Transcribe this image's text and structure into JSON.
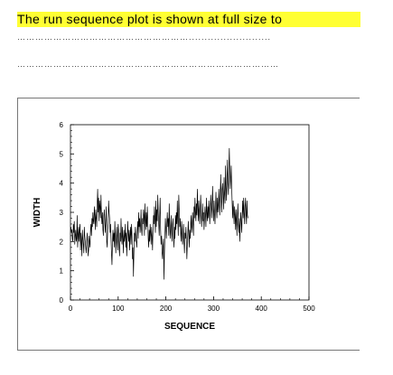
{
  "document": {
    "heading": "The run sequence plot is shown at full size to",
    "dotted_line_1": "…………………………………………………..........................",
    "dotted_line_2": "……………………………………………………………………………"
  },
  "chart_data": {
    "type": "line",
    "title": "",
    "xlabel": "SEQUENCE",
    "ylabel": "WIDTH",
    "xlim": [
      0,
      500
    ],
    "ylim": [
      0,
      6
    ],
    "xticks": [
      0,
      100,
      200,
      300,
      400,
      500
    ],
    "yticks": [
      0,
      1,
      2,
      3,
      4,
      5,
      6
    ],
    "grid": false,
    "series": [
      {
        "values": [
          2.5,
          2.3,
          2.4,
          2.1,
          2.0,
          2.6,
          2.3,
          2.7,
          1.9,
          2.2,
          2.4,
          2.0,
          2.1,
          2.9,
          1.8,
          2.2,
          2.5,
          2.0,
          2.4,
          2.6,
          1.7,
          2.3,
          2.0,
          1.5,
          2.4,
          2.1,
          1.9,
          1.6,
          2.5,
          2.2,
          2.0,
          1.8,
          1.6,
          1.9,
          2.3,
          2.0,
          1.5,
          1.7,
          2.2,
          2.0,
          1.8,
          2.4,
          2.6,
          2.2,
          2.8,
          2.5,
          3.0,
          2.7,
          2.6,
          3.2,
          2.9,
          2.4,
          3.1,
          2.8,
          2.5,
          3.3,
          3.8,
          3.0,
          3.5,
          2.7,
          3.4,
          3.2,
          2.8,
          3.6,
          2.9,
          2.6,
          3.0,
          2.4,
          2.2,
          2.9,
          3.1,
          2.6,
          2.3,
          2.7,
          3.2,
          2.0,
          1.8,
          2.4,
          2.6,
          3.4,
          3.0,
          2.8,
          2.3,
          2.6,
          2.1,
          1.6,
          1.2,
          1.9,
          2.4,
          2.0,
          2.3,
          1.8,
          2.7,
          2.2,
          1.6,
          2.1,
          2.5,
          2.0,
          1.7,
          2.6,
          2.4,
          1.8,
          1.5,
          2.3,
          2.0,
          2.8,
          2.2,
          1.9,
          2.5,
          2.1,
          1.6,
          2.4,
          2.0,
          2.2,
          2.6,
          1.8,
          2.3,
          1.5,
          2.0,
          2.7,
          2.3,
          2.0,
          2.4,
          1.7,
          2.2,
          2.5,
          1.9,
          2.6,
          2.2,
          1.4,
          1.8,
          0.8,
          1.6,
          2.3,
          2.0,
          2.5,
          2.2,
          2.0,
          1.8,
          2.4,
          2.7,
          2.1,
          3.0,
          2.5,
          2.8,
          2.3,
          2.6,
          3.1,
          2.4,
          2.2,
          2.8,
          2.6,
          3.1,
          2.9,
          2.2,
          3.3,
          2.8,
          2.4,
          3.0,
          2.5,
          3.2,
          2.7,
          2.1,
          1.8,
          2.4,
          2.0,
          2.6,
          2.3,
          1.9,
          2.5,
          2.2,
          1.7,
          2.4,
          2.9,
          2.6,
          3.2,
          2.8,
          2.3,
          3.4,
          2.5,
          3.1,
          2.7,
          3.6,
          3.0,
          2.6,
          2.2,
          2.9,
          3.5,
          2.4,
          1.9,
          2.2,
          1.6,
          1.4,
          1.9,
          2.1,
          0.7,
          1.6,
          2.2,
          2.8,
          2.4,
          2.1,
          2.6,
          3.0,
          2.5,
          2.8,
          2.2,
          3.3,
          2.6,
          2.1,
          2.4,
          2.9,
          2.3,
          2.0,
          2.6,
          2.8,
          2.2,
          1.8,
          2.5,
          2.1,
          2.9,
          2.4,
          3.0,
          2.6,
          3.4,
          2.7,
          2.2,
          3.6,
          3.1,
          2.5,
          2.8,
          2.3,
          2.0,
          2.7,
          2.4,
          1.9,
          2.2,
          2.6,
          2.0,
          1.6,
          2.3,
          2.1,
          2.5,
          2.0,
          1.4,
          1.9,
          2.3,
          2.7,
          2.2,
          1.8,
          2.4,
          2.1,
          2.6,
          2.9,
          2.3,
          2.5,
          3.0,
          2.6,
          2.2,
          3.2,
          2.8,
          3.5,
          3.0,
          2.7,
          3.3,
          2.9,
          3.8,
          3.2,
          2.7,
          3.4,
          3.0,
          2.6,
          3.1,
          3.6,
          3.0,
          2.5,
          2.9,
          3.3,
          2.7,
          3.0,
          2.4,
          2.8,
          3.2,
          2.9,
          2.5,
          3.5,
          3.0,
          2.7,
          3.2,
          2.8,
          3.4,
          3.1,
          2.6,
          3.0,
          3.6,
          3.2,
          2.8,
          3.3,
          3.9,
          3.1,
          2.7,
          3.4,
          3.0,
          2.6,
          3.2,
          3.7,
          3.1,
          2.8,
          3.5,
          3.0,
          3.3,
          3.8,
          3.2,
          2.9,
          3.6,
          4.3,
          3.4,
          3.0,
          3.8,
          4.0,
          3.5,
          3.1,
          4.2,
          3.6,
          3.3,
          4.6,
          3.9,
          3.4,
          4.1,
          4.8,
          4.0,
          3.6,
          4.5,
          5.2,
          4.4,
          3.8,
          4.1,
          4.6,
          3.9,
          3.3,
          2.8,
          3.4,
          3.0,
          2.6,
          3.2,
          2.9,
          2.4,
          3.1,
          2.7,
          2.2,
          2.9,
          3.3,
          2.6,
          2.3,
          2.8,
          2.0,
          2.5,
          3.0,
          2.7,
          2.3,
          2.9,
          3.4,
          2.8,
          3.5,
          3.0,
          2.6,
          3.2,
          3.5,
          2.9,
          2.6,
          3.4,
          2.9,
          2.8
        ]
      }
    ]
  }
}
